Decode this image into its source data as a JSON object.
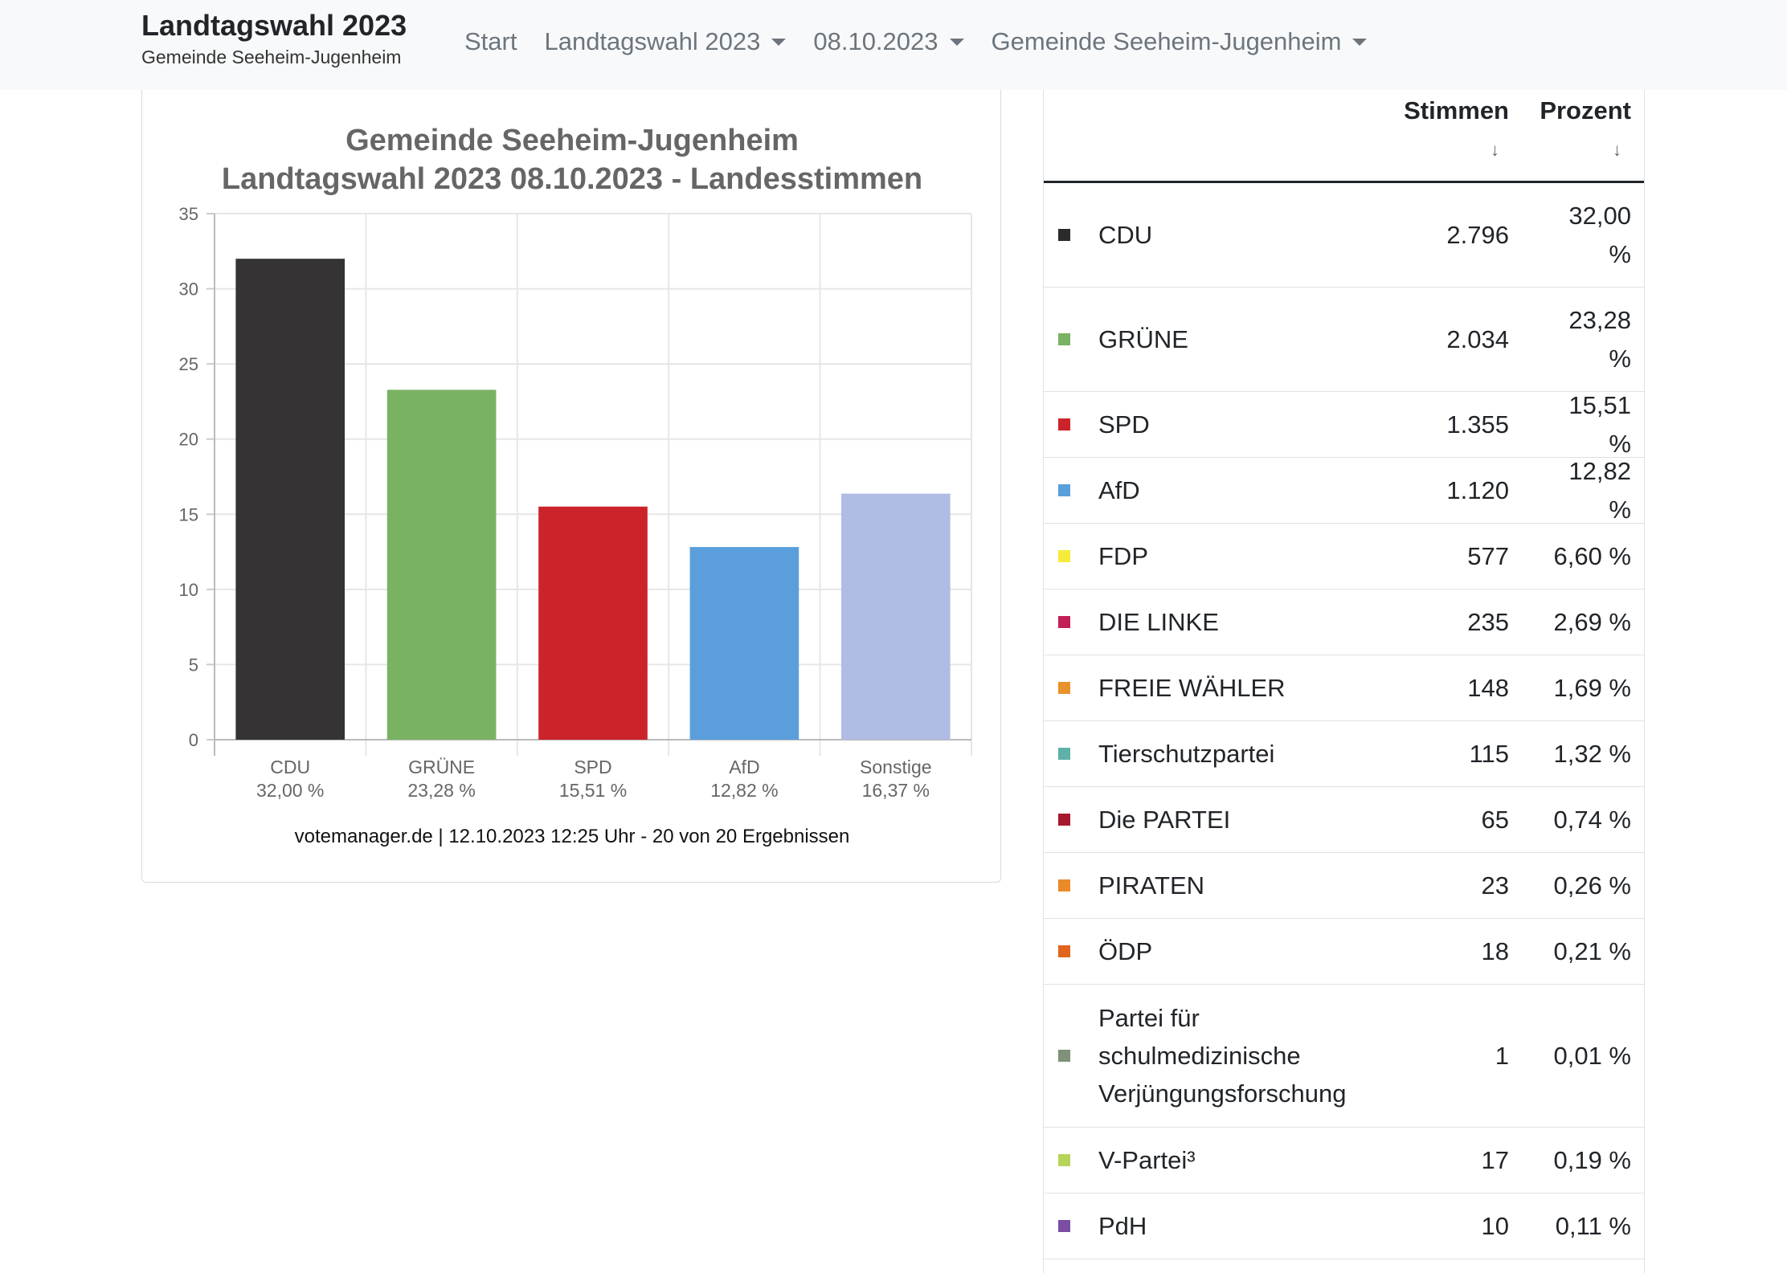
{
  "navbar": {
    "brand_title": "Landtagswahl 2023",
    "brand_subtitle": "Gemeinde Seeheim-Jugenheim",
    "items": [
      {
        "label": "Start",
        "dropdown": false
      },
      {
        "label": "Landtagswahl 2023",
        "dropdown": true
      },
      {
        "label": "08.10.2023",
        "dropdown": true
      },
      {
        "label": "Gemeinde Seeheim-Jugenheim",
        "dropdown": true
      }
    ]
  },
  "chart_data": {
    "type": "bar",
    "title": "Gemeinde Seeheim-Jugenheim",
    "subtitle": "Landtagswahl 2023 08.10.2023  - Landesstimmen",
    "categories": [
      "CDU",
      "GRÜNE",
      "SPD",
      "AfD",
      "Sonstige"
    ],
    "value_labels": [
      "32,00 %",
      "23,28 %",
      "15,51 %",
      "12,82 %",
      "16,37 %"
    ],
    "values": [
      32.0,
      23.28,
      15.51,
      12.82,
      16.37
    ],
    "colors": [
      "#353334",
      "#7ab263",
      "#cc232a",
      "#5a9fdc",
      "#b0bce3"
    ],
    "ylim": [
      0,
      35
    ],
    "yticks": [
      0,
      5,
      10,
      15,
      20,
      25,
      30,
      35
    ],
    "grid": true,
    "credit": "votemanager.de | 12.10.2023 12:25 Uhr - 20 von 20 Ergebnissen"
  },
  "table": {
    "columns": {
      "votes": "Stimmen",
      "percent": "Prozent",
      "sort_glyph": "↓"
    },
    "rows": [
      {
        "party": "CDU",
        "votes": "2.796",
        "percent": "32,00 %",
        "color": "#2b2b2b"
      },
      {
        "party": "GRÜNE",
        "votes": "2.034",
        "percent": "23,28 %",
        "color": "#7ab263"
      },
      {
        "party": "SPD",
        "votes": "1.355",
        "percent": "15,51 %",
        "color": "#cc232a"
      },
      {
        "party": "AfD",
        "votes": "1.120",
        "percent": "12,82 %",
        "color": "#5a9fdc"
      },
      {
        "party": "FDP",
        "votes": "577",
        "percent": "6,60 %",
        "color": "#f5ec3a"
      },
      {
        "party": "DIE LINKE",
        "votes": "235",
        "percent": "2,69 %",
        "color": "#c21f55"
      },
      {
        "party": "FREIE WÄHLER",
        "votes": "148",
        "percent": "1,69 %",
        "color": "#e8922c"
      },
      {
        "party": "Tierschutzpartei",
        "votes": "115",
        "percent": "1,32 %",
        "color": "#5fb0a8"
      },
      {
        "party": "Die PARTEI",
        "votes": "65",
        "percent": "0,74 %",
        "color": "#a5192f"
      },
      {
        "party": "PIRATEN",
        "votes": "23",
        "percent": "0,26 %",
        "color": "#ea8a2a"
      },
      {
        "party": "ÖDP",
        "votes": "18",
        "percent": "0,21 %",
        "color": "#e0641c"
      },
      {
        "party": "Partei für schulmedizinische Verjüngungsforschung",
        "votes": "1",
        "percent": "0,01 %",
        "color": "#7f9179"
      },
      {
        "party": "V-Partei³",
        "votes": "17",
        "percent": "0,19 %",
        "color": "#b7d35a"
      },
      {
        "party": "PdH",
        "votes": "10",
        "percent": "0,11 %",
        "color": "#7b4ea2"
      }
    ]
  }
}
